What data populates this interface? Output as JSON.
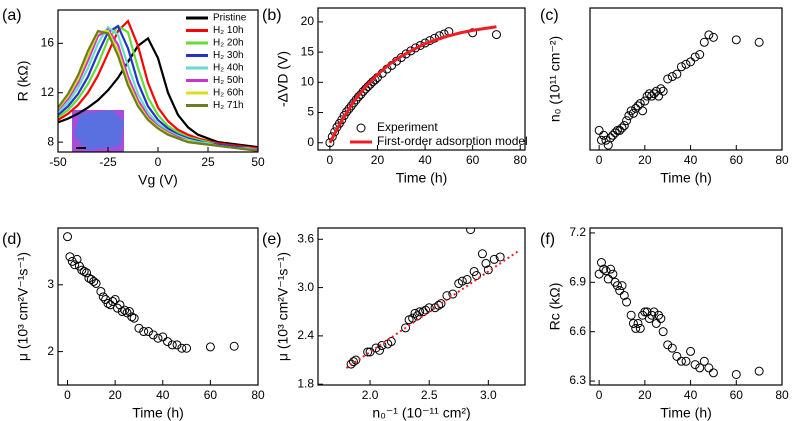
{
  "chart_data": [
    {
      "type": "line",
      "label": "(a)",
      "xlabel": "Vg (V)",
      "ylabel": "R (kΩ)",
      "xlim": [
        -50,
        50
      ],
      "ylim": [
        7.2,
        18.7
      ],
      "xticks": [
        -50,
        -25,
        0,
        25,
        50
      ],
      "yticks": [
        8,
        12,
        16
      ],
      "legend": "upper right",
      "x": [
        -50,
        -45,
        -40,
        -35,
        -30,
        -25,
        -20,
        -15,
        -10,
        -5,
        0,
        5,
        10,
        15,
        20,
        25,
        30,
        35,
        40,
        45,
        50
      ],
      "series": [
        {
          "name": "Pristine",
          "color": "#000000",
          "values": [
            9.6,
            9.9,
            10.3,
            10.8,
            11.4,
            12.2,
            13.2,
            14.5,
            15.8,
            16.4,
            14.8,
            12.0,
            10.2,
            9.2,
            8.6,
            8.3,
            8.0,
            7.9,
            7.8,
            7.7,
            7.6
          ]
        },
        {
          "name": "H₂ 10h",
          "color": "#ff0000",
          "values": [
            9.8,
            10.3,
            11.0,
            12.0,
            13.4,
            15.2,
            17.0,
            17.8,
            15.8,
            12.8,
            10.8,
            9.7,
            9.0,
            8.6,
            8.3,
            8.1,
            7.9,
            7.8,
            7.7,
            7.6,
            7.5
          ]
        },
        {
          "name": "H₂ 20h",
          "color": "#66dd33",
          "values": [
            10.0,
            10.6,
            11.5,
            12.7,
            14.3,
            16.3,
            17.4,
            16.9,
            14.0,
            11.6,
            10.2,
            9.3,
            8.8,
            8.4,
            8.2,
            8.0,
            7.8,
            7.7,
            7.6,
            7.5,
            7.4
          ]
        },
        {
          "name": "H₂ 30h",
          "color": "#2233cc",
          "values": [
            10.2,
            10.9,
            11.9,
            13.3,
            15.2,
            16.9,
            17.4,
            15.6,
            12.8,
            10.9,
            9.8,
            9.1,
            8.6,
            8.3,
            8.1,
            7.9,
            7.8,
            7.7,
            7.6,
            7.5,
            7.4
          ]
        },
        {
          "name": "H₂ 40h",
          "color": "#66ddcc",
          "values": [
            10.4,
            11.2,
            12.4,
            14.0,
            16.0,
            17.3,
            16.7,
            14.2,
            11.9,
            10.4,
            9.5,
            8.9,
            8.5,
            8.2,
            8.0,
            7.9,
            7.7,
            7.6,
            7.5,
            7.5,
            7.4
          ]
        },
        {
          "name": "H₂ 50h",
          "color": "#cc33cc",
          "values": [
            10.6,
            11.5,
            12.8,
            14.6,
            16.6,
            17.1,
            15.9,
            13.3,
            11.4,
            10.1,
            9.3,
            8.8,
            8.4,
            8.1,
            7.9,
            7.8,
            7.7,
            7.6,
            7.5,
            7.4,
            7.4
          ]
        },
        {
          "name": "H₂ 60h",
          "color": "#dddd22",
          "values": [
            10.7,
            11.7,
            13.1,
            15.0,
            16.9,
            17.0,
            15.4,
            12.9,
            11.1,
            9.9,
            9.2,
            8.7,
            8.3,
            8.1,
            7.9,
            7.8,
            7.7,
            7.6,
            7.5,
            7.4,
            7.3
          ]
        },
        {
          "name": "H₂ 71h",
          "color": "#6b7d1f",
          "values": [
            10.8,
            11.9,
            13.4,
            15.4,
            17.0,
            16.8,
            15.0,
            12.6,
            10.9,
            9.8,
            9.1,
            8.6,
            8.3,
            8.0,
            7.9,
            7.8,
            7.7,
            7.6,
            7.5,
            7.4,
            7.3
          ]
        }
      ]
    },
    {
      "type": "scatter",
      "label": "(b)",
      "xlabel": "Time (h)",
      "ylabel": "-ΔVD (V)",
      "xlim": [
        -5,
        82
      ],
      "ylim": [
        -1.2,
        22.3
      ],
      "xticks": [
        0,
        20,
        40,
        60,
        80
      ],
      "yticks": [
        0,
        5,
        10,
        15,
        20
      ],
      "legend": "lower right",
      "x": [
        0,
        1,
        2,
        3,
        4,
        5,
        6,
        7,
        8,
        9,
        10,
        11,
        12,
        13,
        14,
        15,
        16,
        17,
        18,
        19,
        20,
        22,
        24,
        26,
        28,
        30,
        32,
        34,
        36,
        38,
        40,
        42,
        44,
        46,
        48,
        50,
        60,
        70
      ],
      "series": [
        {
          "name": "Experiment",
          "color": "#000000",
          "values": [
            0,
            1,
            1.8,
            2.6,
            3.2,
            3.8,
            4.5,
            5.1,
            5.6,
            6.1,
            6.6,
            7.1,
            7.6,
            8.0,
            8.5,
            8.9,
            9.3,
            9.7,
            10.1,
            10.4,
            10.8,
            11.5,
            12.2,
            12.8,
            13.5,
            14.1,
            14.7,
            15.2,
            15.7,
            16.1,
            16.5,
            16.9,
            17.3,
            17.7,
            18.0,
            18.4,
            18.2,
            17.9
          ]
        },
        {
          "name": "First-order adsorption model",
          "color": "#ee1c24",
          "style": "line",
          "x": [
            0,
            5,
            10,
            15,
            20,
            25,
            30,
            35,
            40,
            45,
            50,
            55,
            60,
            65,
            70
          ],
          "values": [
            0,
            3.7,
            6.8,
            9.3,
            11.3,
            13.0,
            14.3,
            15.4,
            16.4,
            17.1,
            17.7,
            18.2,
            18.6,
            18.9,
            19.2
          ]
        }
      ]
    },
    {
      "type": "scatter",
      "label": "(c)",
      "xlabel": "Time (h)",
      "ylabel": "n₀ (10¹¹ cm⁻²)",
      "xlim": [
        -4,
        80
      ],
      "ylim": [
        3.1,
        6.0
      ],
      "xticks": [
        0,
        20,
        40,
        60,
        80
      ],
      "x": [
        0,
        1,
        2,
        3,
        4,
        5,
        6,
        7,
        8,
        9,
        10,
        11,
        12,
        13,
        14,
        15,
        16,
        17,
        18,
        19,
        20,
        21,
        22,
        23,
        24,
        25,
        26,
        27,
        28,
        30,
        32,
        34,
        36,
        38,
        40,
        42,
        44,
        46,
        48,
        50,
        60,
        70
      ],
      "series": [
        {
          "color": "#000000",
          "values": [
            3.5,
            3.3,
            3.4,
            3.3,
            3.2,
            3.35,
            3.4,
            3.45,
            3.5,
            3.5,
            3.55,
            3.6,
            3.7,
            3.8,
            3.9,
            3.85,
            3.95,
            4.0,
            4.05,
            3.9,
            4.1,
            4.2,
            4.25,
            4.2,
            4.25,
            4.3,
            4.2,
            4.35,
            4.3,
            4.55,
            4.6,
            4.65,
            4.8,
            4.85,
            4.9,
            5.0,
            5.05,
            5.3,
            5.45,
            5.4,
            5.35,
            5.3
          ]
        }
      ]
    },
    {
      "type": "scatter",
      "label": "(d)",
      "xlabel": "Time (h)",
      "ylabel": "μ (10³ cm²V⁻¹s⁻¹)",
      "xlim": [
        -4,
        80
      ],
      "ylim": [
        1.5,
        3.85
      ],
      "xticks": [
        0,
        20,
        40,
        60,
        80
      ],
      "yticks": [
        2,
        3
      ],
      "x": [
        0,
        1,
        2,
        3,
        4,
        5,
        6,
        7,
        8,
        9,
        10,
        11,
        12,
        14,
        15,
        16,
        17,
        18,
        19,
        20,
        21,
        22,
        23,
        24,
        25,
        26,
        27,
        28,
        30,
        32,
        34,
        36,
        38,
        40,
        42,
        44,
        46,
        48,
        50,
        60,
        70
      ],
      "series": [
        {
          "color": "#000000",
          "values": [
            3.72,
            3.42,
            3.35,
            3.3,
            3.38,
            3.28,
            3.22,
            3.2,
            3.18,
            3.1,
            3.08,
            3.05,
            3.02,
            2.9,
            2.82,
            2.78,
            2.72,
            2.7,
            2.75,
            2.78,
            2.65,
            2.7,
            2.6,
            2.62,
            2.58,
            2.6,
            2.52,
            2.5,
            2.35,
            2.3,
            2.3,
            2.25,
            2.2,
            2.22,
            2.15,
            2.1,
            2.1,
            2.05,
            2.05,
            2.07,
            2.08
          ]
        }
      ]
    },
    {
      "type": "scatter",
      "label": "(e)",
      "xlabel": "n₀⁻¹ (10⁻¹¹ cm²)",
      "ylabel": "μ (10³ cm²V⁻¹s⁻¹)",
      "xlim": [
        1.56,
        3.31
      ],
      "ylim": [
        1.79,
        3.74
      ],
      "xticks": [
        {
          "value": 2,
          "label": "2.0"
        },
        2.5,
        {
          "value": 3,
          "label": "3.0"
        }
      ],
      "yticks": [
        1.8,
        2.4,
        {
          "value": 3,
          "label": "3.0"
        },
        3.6
      ],
      "x": [
        1.84,
        1.86,
        1.88,
        1.98,
        2.0,
        2.05,
        2.08,
        2.1,
        2.15,
        2.18,
        2.3,
        2.33,
        2.36,
        2.38,
        2.4,
        2.42,
        2.45,
        2.47,
        2.5,
        2.55,
        2.58,
        2.6,
        2.65,
        2.7,
        2.75,
        2.78,
        2.82,
        2.85,
        2.88,
        2.9,
        2.95,
        2.98,
        3.0,
        3.05,
        3.1
      ],
      "series": [
        {
          "color": "#000000",
          "values": [
            2.05,
            2.08,
            2.1,
            2.2,
            2.2,
            2.25,
            2.22,
            2.28,
            2.3,
            2.33,
            2.5,
            2.6,
            2.62,
            2.68,
            2.65,
            2.7,
            2.7,
            2.72,
            2.75,
            2.75,
            2.78,
            2.8,
            2.9,
            2.92,
            3.05,
            3.08,
            3.1,
            3.72,
            3.2,
            3.15,
            3.42,
            3.3,
            3.22,
            3.35,
            3.38
          ]
        },
        {
          "color": "#ee1c24",
          "style": "dotted",
          "x": [
            1.8,
            3.25
          ],
          "values": [
            2.0,
            3.45
          ]
        }
      ]
    },
    {
      "type": "scatter",
      "label": "(f)",
      "xlabel": "Time (h)",
      "ylabel": "Rc (kΩ)",
      "xlim": [
        -4,
        80
      ],
      "ylim": [
        6.276,
        7.23
      ],
      "xticks": [
        0,
        20,
        40,
        60,
        80
      ],
      "yticks": [
        6.3,
        6.6,
        6.9,
        7.2
      ],
      "x": [
        0,
        1,
        2,
        3,
        4,
        5,
        6,
        7,
        8,
        9,
        10,
        11,
        12,
        14,
        15,
        16,
        17,
        18,
        19,
        20,
        21,
        22,
        23,
        24,
        25,
        26,
        27,
        28,
        30,
        32,
        34,
        36,
        38,
        40,
        42,
        44,
        46,
        48,
        50,
        60,
        70
      ],
      "series": [
        {
          "color": "#000000",
          "values": [
            6.95,
            7.02,
            6.98,
            6.97,
            6.92,
            6.98,
            6.95,
            6.9,
            6.88,
            6.85,
            6.88,
            6.82,
            6.78,
            6.7,
            6.65,
            6.62,
            6.65,
            6.62,
            6.7,
            6.72,
            6.72,
            6.68,
            6.7,
            6.72,
            6.65,
            6.7,
            6.68,
            6.6,
            6.52,
            6.5,
            6.45,
            6.42,
            6.42,
            6.48,
            6.4,
            6.38,
            6.42,
            6.38,
            6.35,
            6.34,
            6.36
          ]
        }
      ]
    }
  ]
}
